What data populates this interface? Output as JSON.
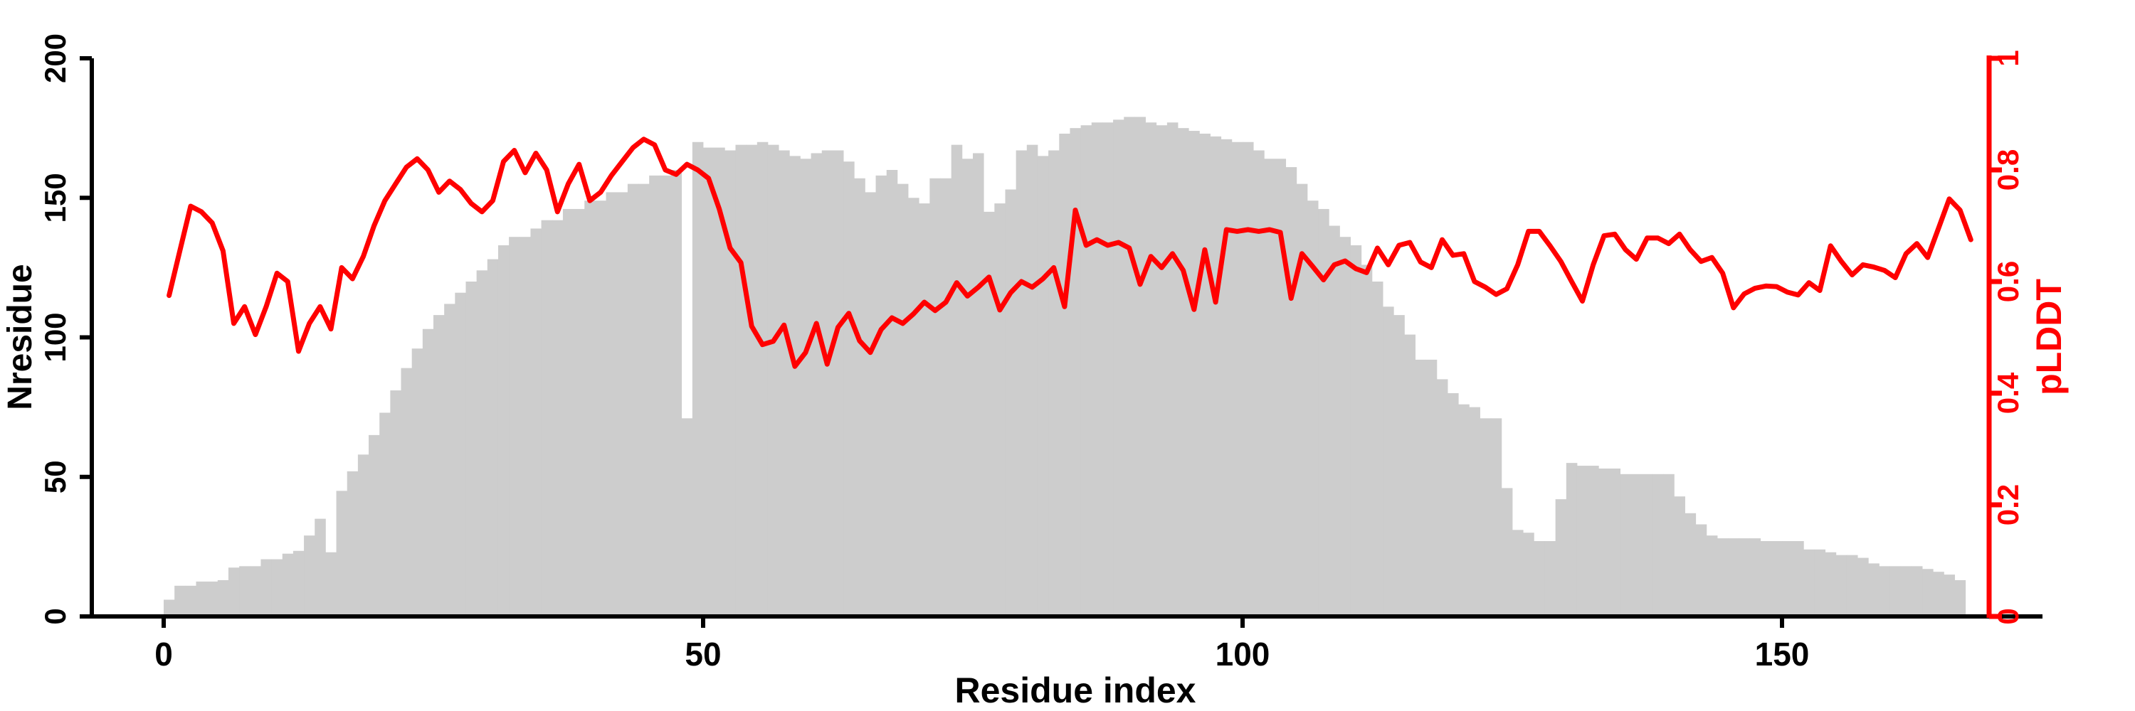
{
  "figure": {
    "background": "#ffffff",
    "bar_color": "#cdcdcd",
    "line_color": "#ff0000",
    "axis_color": "#000000",
    "right_axis_color": "#ff0000"
  },
  "chart_data": {
    "type": "bar+line",
    "title": "",
    "x_label": "Residue index",
    "x_ticks": [
      0,
      50,
      100,
      150
    ],
    "x_range": [
      0,
      168
    ],
    "grid": false,
    "legend": "none",
    "y_left": {
      "label": "Nresidue",
      "range": [
        0,
        200
      ],
      "ticks": [
        0,
        50,
        100,
        150,
        200
      ],
      "color": "#000000"
    },
    "y_right": {
      "label": "pLDDT",
      "range": [
        0,
        1
      ],
      "ticks": [
        "0",
        "0.2",
        "0.4",
        "0.6",
        "0.8",
        "1"
      ],
      "color": "#ff0000"
    },
    "series": [
      {
        "name": "Nresidue",
        "type": "bar",
        "axis": "left",
        "color": "#cdcdcd",
        "x_start": 1,
        "values": [
          6,
          11,
          11,
          12.5,
          12.5,
          13,
          17.5,
          18,
          18,
          20.5,
          20.5,
          22.5,
          23.5,
          29,
          35,
          23,
          45,
          52,
          58,
          65,
          73,
          81,
          89,
          96,
          103,
          108,
          112,
          116,
          120,
          124,
          128,
          133,
          136,
          136,
          139,
          142,
          142,
          146,
          146,
          149,
          149,
          152,
          152,
          155,
          155,
          158,
          158,
          160,
          71,
          170,
          168,
          168,
          167,
          169,
          169,
          170,
          169,
          167,
          165,
          164,
          166,
          167,
          167,
          163,
          157,
          152,
          158,
          160,
          155,
          150,
          148,
          157,
          157,
          169,
          164,
          166,
          145,
          148,
          153,
          167,
          169,
          165,
          167,
          173,
          175,
          176,
          177,
          177,
          178,
          179,
          179,
          177,
          176,
          177,
          175,
          174,
          173,
          172,
          171,
          170,
          170,
          167,
          164,
          164,
          161,
          155,
          149,
          146,
          140,
          136,
          133,
          126,
          120,
          111,
          108,
          101,
          92,
          92,
          85,
          80,
          76,
          75,
          71,
          71,
          46,
          31,
          30,
          27,
          27,
          42,
          55,
          54,
          54,
          53,
          53,
          51,
          51,
          51,
          51,
          51,
          43,
          37,
          33,
          29,
          28,
          28,
          28,
          28,
          27,
          27,
          27,
          27,
          24,
          24,
          23,
          22,
          22,
          21,
          19,
          18,
          18,
          18,
          18,
          17,
          16,
          15,
          13
        ]
      },
      {
        "name": "pLDDT",
        "type": "line",
        "axis": "right",
        "color": "#ff0000",
        "x_start": 1,
        "values": [
          0.575,
          0.655,
          0.735,
          0.725,
          0.705,
          0.655,
          0.525,
          0.555,
          0.505,
          0.555,
          0.615,
          0.6,
          0.475,
          0.525,
          0.555,
          0.515,
          0.625,
          0.605,
          0.645,
          0.7,
          0.745,
          0.775,
          0.805,
          0.82,
          0.8,
          0.76,
          0.78,
          0.765,
          0.74,
          0.725,
          0.745,
          0.815,
          0.835,
          0.795,
          0.83,
          0.8,
          0.725,
          0.775,
          0.81,
          0.745,
          0.76,
          0.79,
          0.815,
          0.84,
          0.855,
          0.845,
          0.8,
          0.792,
          0.81,
          0.8,
          0.785,
          0.73,
          0.66,
          0.634,
          0.52,
          0.487,
          0.493,
          0.522,
          0.448,
          0.473,
          0.525,
          0.452,
          0.518,
          0.543,
          0.494,
          0.473,
          0.514,
          0.535,
          0.525,
          0.542,
          0.563,
          0.548,
          0.563,
          0.598,
          0.574,
          0.59,
          0.608,
          0.549,
          0.58,
          0.6,
          0.59,
          0.605,
          0.625,
          0.555,
          0.728,
          0.665,
          0.675,
          0.665,
          0.67,
          0.66,
          0.595,
          0.645,
          0.625,
          0.65,
          0.62,
          0.55,
          0.657,
          0.563,
          0.693,
          0.69,
          0.693,
          0.69,
          0.693,
          0.688,
          0.57,
          0.65,
          0.627,
          0.603,
          0.63,
          0.637,
          0.623,
          0.616,
          0.66,
          0.63,
          0.665,
          0.67,
          0.635,
          0.625,
          0.675,
          0.647,
          0.65,
          0.6,
          0.59,
          0.577,
          0.587,
          0.63,
          0.69,
          0.69,
          0.664,
          0.636,
          0.6,
          0.565,
          0.63,
          0.682,
          0.685,
          0.657,
          0.64,
          0.678,
          0.678,
          0.668,
          0.685,
          0.657,
          0.636,
          0.643,
          0.615,
          0.553,
          0.578,
          0.588,
          0.592,
          0.591,
          0.581,
          0.576,
          0.598,
          0.584,
          0.664,
          0.636,
          0.612,
          0.63,
          0.626,
          0.62,
          0.607,
          0.65,
          0.668,
          0.643,
          0.695,
          0.748,
          0.728,
          0.675
        ]
      }
    ]
  }
}
